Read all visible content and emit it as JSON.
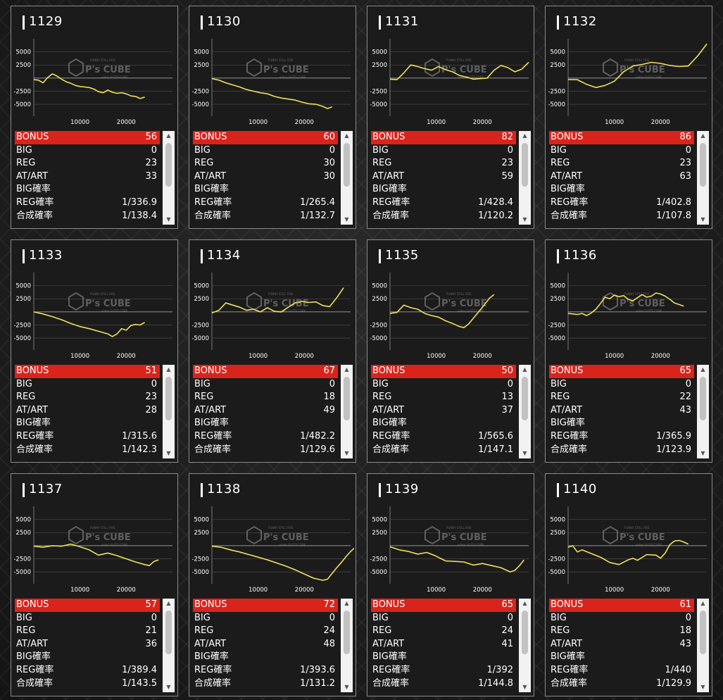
{
  "labels": {
    "bonus": "BONUS",
    "big": "BIG",
    "reg": "REG",
    "at_art": "AT/ART",
    "big_prob": "BIG確率",
    "reg_prob": "REG確率",
    "combined_prob": "合成確率"
  },
  "colors": {
    "line": "#f2e05a",
    "bonus_row": "#d9241c",
    "card_border": "#8a8a8a",
    "grid": "#555555"
  },
  "watermark": {
    "brand": "P's CUBE",
    "tagline": "FUNNY STILL FIRE",
    "subline": "video SLOTS CUBE"
  },
  "icons": {
    "scroll_up": "arrow-up-icon",
    "scroll_down": "arrow-down-icon"
  },
  "chart_data": {
    "type": "line",
    "y_ticks": [
      "5000",
      "2500",
      "-2500",
      "-5000"
    ],
    "x_ticks": [
      "10000",
      "20000"
    ],
    "xlim": [
      0,
      30000
    ],
    "ylim": [
      -7000,
      7500
    ]
  },
  "machines": [
    {
      "number": "1129",
      "bonus": "56",
      "big": "0",
      "reg": "23",
      "at_art": "33",
      "big_prob": "",
      "reg_prob": "1/336.9",
      "combined_prob": "1/138.4",
      "points": [
        [
          0,
          -300
        ],
        [
          1000,
          -400
        ],
        [
          2000,
          -900
        ],
        [
          3000,
          100
        ],
        [
          4000,
          800
        ],
        [
          5000,
          400
        ],
        [
          6000,
          -200
        ],
        [
          7000,
          -700
        ],
        [
          8000,
          -1000
        ],
        [
          9000,
          -1400
        ],
        [
          10000,
          -1600
        ],
        [
          11000,
          -1700
        ],
        [
          12000,
          -1800
        ],
        [
          13000,
          -2100
        ],
        [
          14000,
          -2600
        ],
        [
          15000,
          -2800
        ],
        [
          16000,
          -2300
        ],
        [
          17000,
          -2700
        ],
        [
          18000,
          -2900
        ],
        [
          19000,
          -2800
        ],
        [
          20000,
          -3000
        ],
        [
          21000,
          -3400
        ],
        [
          22000,
          -3500
        ],
        [
          23000,
          -3900
        ],
        [
          24000,
          -3600
        ]
      ]
    },
    {
      "number": "1130",
      "bonus": "60",
      "big": "0",
      "reg": "30",
      "at_art": "30",
      "big_prob": "",
      "reg_prob": "1/265.4",
      "combined_prob": "1/132.7",
      "points": [
        [
          0,
          -100
        ],
        [
          1500,
          -400
        ],
        [
          3000,
          -900
        ],
        [
          4500,
          -1300
        ],
        [
          6000,
          -1700
        ],
        [
          7500,
          -2200
        ],
        [
          9000,
          -2500
        ],
        [
          10500,
          -2800
        ],
        [
          12000,
          -3000
        ],
        [
          13500,
          -3500
        ],
        [
          15000,
          -3800
        ],
        [
          16500,
          -4000
        ],
        [
          18000,
          -4200
        ],
        [
          19500,
          -4600
        ],
        [
          21000,
          -4900
        ],
        [
          22500,
          -5000
        ],
        [
          24000,
          -5400
        ],
        [
          25000,
          -5800
        ],
        [
          26000,
          -5500
        ]
      ]
    },
    {
      "number": "1131",
      "bonus": "82",
      "big": "0",
      "reg": "23",
      "at_art": "59",
      "big_prob": "",
      "reg_prob": "1/428.4",
      "combined_prob": "1/120.2",
      "points": [
        [
          0,
          -200
        ],
        [
          1500,
          -300
        ],
        [
          3000,
          1000
        ],
        [
          4500,
          2500
        ],
        [
          6000,
          2200
        ],
        [
          7500,
          1800
        ],
        [
          9000,
          1500
        ],
        [
          10500,
          2200
        ],
        [
          12000,
          1600
        ],
        [
          13500,
          1200
        ],
        [
          15000,
          500
        ],
        [
          16500,
          200
        ],
        [
          18000,
          -200
        ],
        [
          19500,
          -100
        ],
        [
          21000,
          0
        ],
        [
          22500,
          1500
        ],
        [
          24000,
          2400
        ],
        [
          25500,
          2000
        ],
        [
          27000,
          1200
        ],
        [
          28500,
          1700
        ],
        [
          30000,
          3000
        ]
      ]
    },
    {
      "number": "1132",
      "bonus": "86",
      "big": "0",
      "reg": "23",
      "at_art": "63",
      "big_prob": "",
      "reg_prob": "1/402.8",
      "combined_prob": "1/107.8",
      "points": [
        [
          0,
          -300
        ],
        [
          2000,
          -300
        ],
        [
          4000,
          -1200
        ],
        [
          6000,
          -1800
        ],
        [
          8000,
          -1400
        ],
        [
          10000,
          -600
        ],
        [
          12000,
          1200
        ],
        [
          14000,
          2300
        ],
        [
          16000,
          2600
        ],
        [
          18000,
          3000
        ],
        [
          20000,
          2800
        ],
        [
          22000,
          2400
        ],
        [
          24000,
          2200
        ],
        [
          26000,
          2300
        ],
        [
          28000,
          4200
        ],
        [
          30000,
          6500
        ]
      ]
    },
    {
      "number": "1133",
      "bonus": "51",
      "big": "0",
      "reg": "23",
      "at_art": "28",
      "big_prob": "",
      "reg_prob": "1/315.6",
      "combined_prob": "1/142.3",
      "points": [
        [
          0,
          0
        ],
        [
          2000,
          -400
        ],
        [
          4000,
          -900
        ],
        [
          6000,
          -1500
        ],
        [
          8000,
          -2200
        ],
        [
          10000,
          -2800
        ],
        [
          12000,
          -3200
        ],
        [
          14000,
          -3700
        ],
        [
          16000,
          -4200
        ],
        [
          17000,
          -4700
        ],
        [
          18000,
          -4200
        ],
        [
          19000,
          -3200
        ],
        [
          20000,
          -3500
        ],
        [
          21000,
          -2600
        ],
        [
          22000,
          -2400
        ],
        [
          23000,
          -2500
        ],
        [
          24000,
          -2000
        ]
      ]
    },
    {
      "number": "1134",
      "bonus": "67",
      "big": "0",
      "reg": "18",
      "at_art": "49",
      "big_prob": "",
      "reg_prob": "1/482.2",
      "combined_prob": "1/129.6",
      "points": [
        [
          0,
          -200
        ],
        [
          1500,
          300
        ],
        [
          3000,
          1700
        ],
        [
          4500,
          1300
        ],
        [
          6000,
          900
        ],
        [
          7500,
          300
        ],
        [
          9000,
          500
        ],
        [
          10500,
          0
        ],
        [
          12000,
          800
        ],
        [
          13500,
          100
        ],
        [
          15000,
          0
        ],
        [
          16500,
          900
        ],
        [
          18000,
          1700
        ],
        [
          19500,
          2000
        ],
        [
          21000,
          1800
        ],
        [
          22500,
          1900
        ],
        [
          24000,
          1200
        ],
        [
          25500,
          1000
        ],
        [
          27000,
          2700
        ],
        [
          28500,
          4600
        ]
      ]
    },
    {
      "number": "1135",
      "bonus": "50",
      "big": "0",
      "reg": "13",
      "at_art": "37",
      "big_prob": "",
      "reg_prob": "1/565.6",
      "combined_prob": "1/147.1",
      "points": [
        [
          0,
          -300
        ],
        [
          1500,
          -100
        ],
        [
          3000,
          1300
        ],
        [
          4500,
          800
        ],
        [
          6000,
          500
        ],
        [
          7500,
          -300
        ],
        [
          9000,
          -700
        ],
        [
          10500,
          -1000
        ],
        [
          12000,
          -1700
        ],
        [
          13500,
          -2200
        ],
        [
          15000,
          -2800
        ],
        [
          16000,
          -3000
        ],
        [
          17000,
          -2300
        ],
        [
          18500,
          -700
        ],
        [
          20000,
          900
        ],
        [
          21500,
          2600
        ],
        [
          22500,
          3300
        ]
      ]
    },
    {
      "number": "1136",
      "bonus": "65",
      "big": "0",
      "reg": "22",
      "at_art": "43",
      "big_prob": "",
      "reg_prob": "1/365.9",
      "combined_prob": "1/123.9",
      "points": [
        [
          0,
          -300
        ],
        [
          2000,
          -500
        ],
        [
          3000,
          -300
        ],
        [
          4000,
          -700
        ],
        [
          5000,
          -200
        ],
        [
          6000,
          500
        ],
        [
          7000,
          1600
        ],
        [
          8000,
          2800
        ],
        [
          9000,
          2500
        ],
        [
          10000,
          3200
        ],
        [
          11000,
          2900
        ],
        [
          12000,
          3100
        ],
        [
          13000,
          2400
        ],
        [
          14000,
          2100
        ],
        [
          15000,
          2700
        ],
        [
          16000,
          3300
        ],
        [
          17000,
          2800
        ],
        [
          18000,
          3000
        ],
        [
          19000,
          3600
        ],
        [
          20000,
          3400
        ],
        [
          21000,
          3000
        ],
        [
          22000,
          2400
        ],
        [
          23000,
          1700
        ],
        [
          24000,
          1400
        ],
        [
          25000,
          1100
        ]
      ]
    },
    {
      "number": "1137",
      "bonus": "57",
      "big": "0",
      "reg": "21",
      "at_art": "36",
      "big_prob": "",
      "reg_prob": "1/389.4",
      "combined_prob": "1/143.5",
      "points": [
        [
          0,
          -100
        ],
        [
          2000,
          -300
        ],
        [
          4000,
          0
        ],
        [
          6000,
          -100
        ],
        [
          8000,
          300
        ],
        [
          10000,
          -200
        ],
        [
          12000,
          -800
        ],
        [
          14000,
          -1800
        ],
        [
          16000,
          -1400
        ],
        [
          18000,
          -1900
        ],
        [
          20000,
          -2500
        ],
        [
          22000,
          -3100
        ],
        [
          24000,
          -3600
        ],
        [
          25000,
          -3800
        ],
        [
          26000,
          -3000
        ],
        [
          27000,
          -2700
        ]
      ]
    },
    {
      "number": "1138",
      "bonus": "72",
      "big": "0",
      "reg": "24",
      "at_art": "48",
      "big_prob": "",
      "reg_prob": "1/393.6",
      "combined_prob": "1/131.2",
      "points": [
        [
          0,
          -100
        ],
        [
          2000,
          -300
        ],
        [
          4000,
          -800
        ],
        [
          6000,
          -1200
        ],
        [
          8000,
          -1700
        ],
        [
          10000,
          -2200
        ],
        [
          12000,
          -2700
        ],
        [
          14000,
          -3300
        ],
        [
          16000,
          -3900
        ],
        [
          18000,
          -4600
        ],
        [
          20000,
          -5400
        ],
        [
          22000,
          -6200
        ],
        [
          24000,
          -6600
        ],
        [
          25000,
          -6400
        ],
        [
          26000,
          -5300
        ],
        [
          27000,
          -4200
        ],
        [
          28000,
          -3200
        ],
        [
          29000,
          -2100
        ],
        [
          30000,
          -1100
        ],
        [
          31000,
          -300
        ],
        [
          32000,
          200
        ]
      ]
    },
    {
      "number": "1139",
      "bonus": "65",
      "big": "0",
      "reg": "24",
      "at_art": "41",
      "big_prob": "",
      "reg_prob": "1/392",
      "combined_prob": "1/144.8",
      "points": [
        [
          0,
          -200
        ],
        [
          2000,
          -800
        ],
        [
          4000,
          -1100
        ],
        [
          6000,
          -1600
        ],
        [
          8000,
          -1300
        ],
        [
          10000,
          -2000
        ],
        [
          12000,
          -2900
        ],
        [
          14000,
          -3000
        ],
        [
          16000,
          -3100
        ],
        [
          18000,
          -3700
        ],
        [
          20000,
          -3400
        ],
        [
          22000,
          -3800
        ],
        [
          24000,
          -4200
        ],
        [
          26000,
          -5000
        ],
        [
          27000,
          -4700
        ],
        [
          28000,
          -3800
        ],
        [
          29000,
          -2700
        ]
      ]
    },
    {
      "number": "1140",
      "bonus": "61",
      "big": "0",
      "reg": "18",
      "at_art": "43",
      "big_prob": "",
      "reg_prob": "1/440",
      "combined_prob": "1/129.9",
      "points": [
        [
          0,
          -300
        ],
        [
          1000,
          0
        ],
        [
          2000,
          -1200
        ],
        [
          3000,
          -800
        ],
        [
          5000,
          -1500
        ],
        [
          7000,
          -2200
        ],
        [
          9000,
          -3200
        ],
        [
          11000,
          -3600
        ],
        [
          13000,
          -2700
        ],
        [
          14000,
          -2400
        ],
        [
          15000,
          -2800
        ],
        [
          17000,
          -1700
        ],
        [
          19000,
          -1800
        ],
        [
          20000,
          -2400
        ],
        [
          21000,
          -1400
        ],
        [
          22000,
          200
        ],
        [
          23000,
          900
        ],
        [
          24000,
          1000
        ],
        [
          25000,
          700
        ],
        [
          26000,
          300
        ]
      ]
    }
  ]
}
